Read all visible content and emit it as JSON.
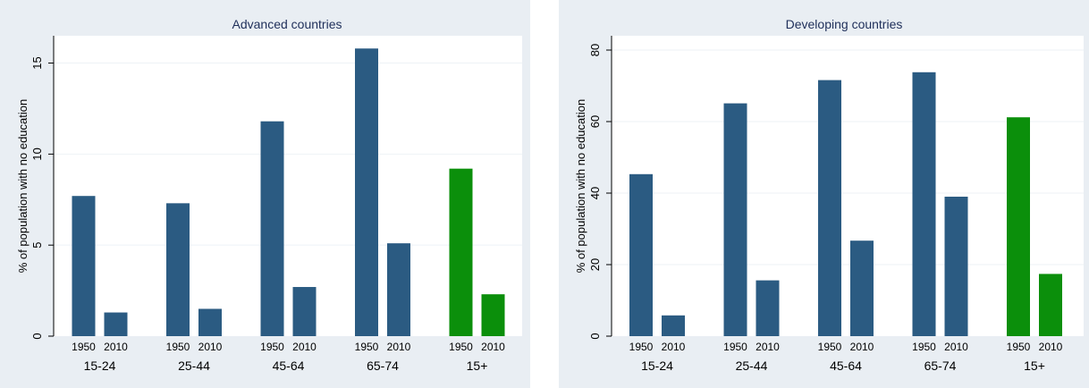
{
  "chart_data": [
    {
      "type": "bar",
      "title": "Advanced countries",
      "ylabel": "% of population with no education",
      "ylim": [
        0,
        16.5
      ],
      "yticks": [
        0,
        5,
        10,
        15
      ],
      "grid": true,
      "groups": [
        "15-24",
        "25-44",
        "45-64",
        "65-74",
        "15+"
      ],
      "years": [
        "1950",
        "2010"
      ],
      "values": [
        [
          7.7,
          1.3
        ],
        [
          7.3,
          1.5
        ],
        [
          11.8,
          2.7
        ],
        [
          15.8,
          5.1
        ],
        [
          9.2,
          2.3
        ]
      ],
      "highlight_group": "15+"
    },
    {
      "type": "bar",
      "title": "Developing countries",
      "ylabel": "% of population with no education",
      "ylim": [
        0,
        84
      ],
      "yticks": [
        0,
        20,
        40,
        60,
        80
      ],
      "grid": true,
      "groups": [
        "15-24",
        "25-44",
        "45-64",
        "65-74",
        "15+"
      ],
      "years": [
        "1950",
        "2010"
      ],
      "values": [
        [
          45.3,
          5.8
        ],
        [
          65.1,
          15.6
        ],
        [
          71.6,
          26.7
        ],
        [
          73.8,
          39
        ],
        [
          61.2,
          17.4
        ]
      ],
      "highlight_group": "15+"
    }
  ],
  "colors": {
    "bar": "#2b5b82",
    "highlight": "#0b8f0b",
    "panel": "#e9eef3",
    "title": "#1f2f5a"
  }
}
